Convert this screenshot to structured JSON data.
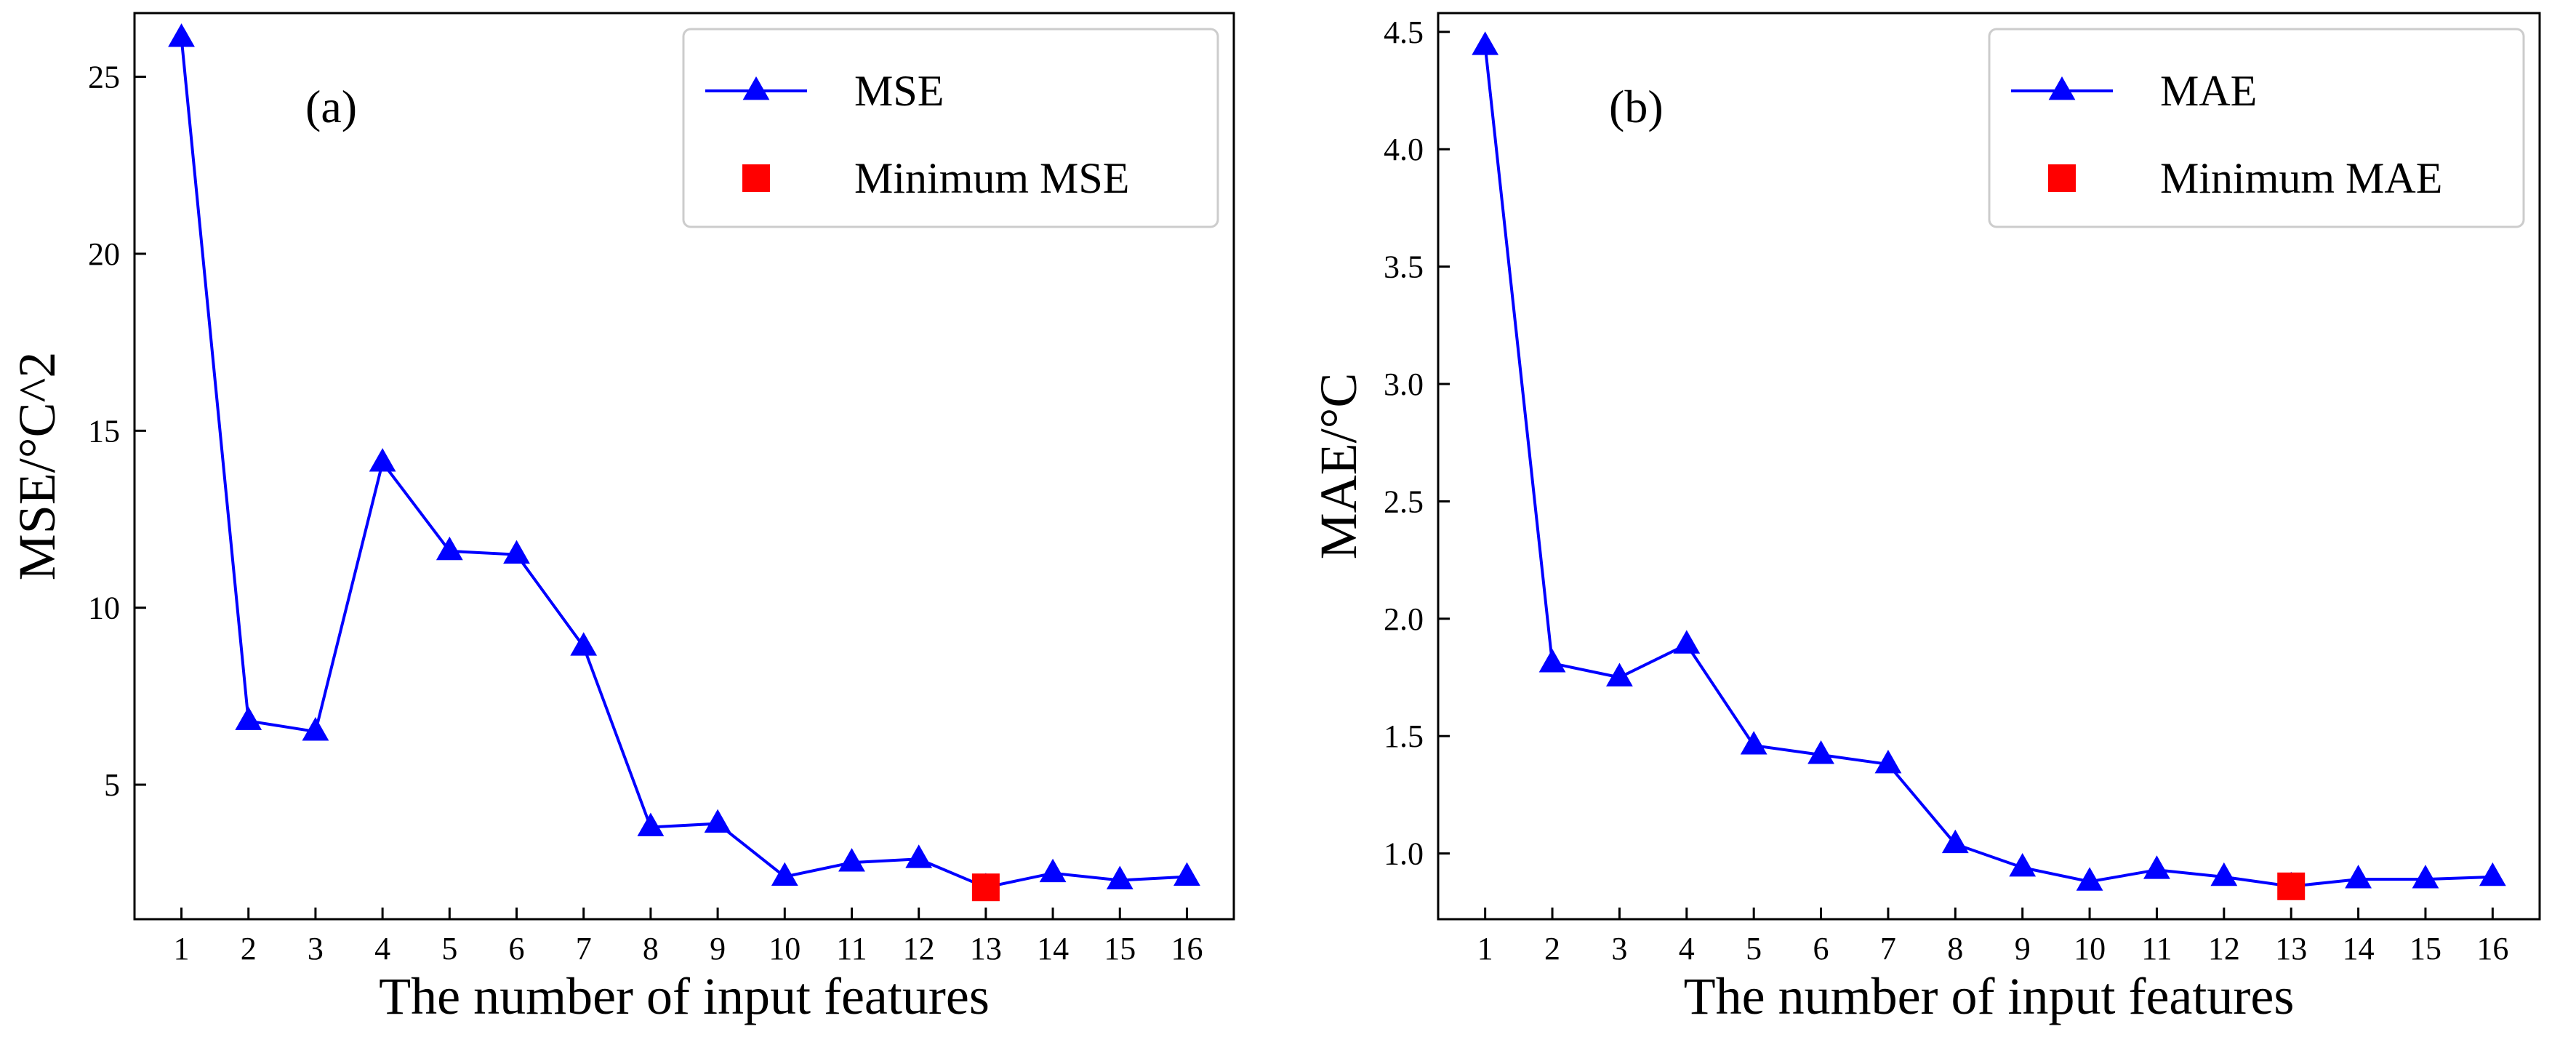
{
  "chart_data": [
    {
      "type": "line",
      "panel_label": "(a)",
      "xlabel": "The number of input features",
      "ylabel": "MSE/°C^2",
      "x": [
        1,
        2,
        3,
        4,
        5,
        6,
        7,
        8,
        9,
        10,
        11,
        12,
        13,
        14,
        15,
        16
      ],
      "xlim": [
        0.3,
        16.7
      ],
      "ylim": [
        1.2,
        26.8
      ],
      "yticks": [
        5,
        10,
        15,
        20,
        25
      ],
      "series": [
        {
          "name": "MSE",
          "color": "#0000ff",
          "marker": "triangle",
          "values": [
            26.1,
            6.8,
            6.5,
            14.1,
            11.6,
            11.5,
            8.9,
            3.8,
            3.9,
            2.4,
            2.8,
            2.9,
            2.1,
            2.5,
            2.3,
            2.4
          ]
        }
      ],
      "highlight": {
        "name": "Minimum MSE",
        "color": "#ff0000",
        "marker": "square",
        "x": 13,
        "y": 2.1
      },
      "legend": "top-right",
      "grid": false
    },
    {
      "type": "line",
      "panel_label": "(b)",
      "xlabel": "The number of input features",
      "ylabel": "MAE/°C",
      "x": [
        1,
        2,
        3,
        4,
        5,
        6,
        7,
        8,
        9,
        10,
        11,
        12,
        13,
        14,
        15,
        16
      ],
      "xlim": [
        0.3,
        16.7
      ],
      "ylim": [
        0.72,
        4.58
      ],
      "yticks": [
        1.0,
        1.5,
        2.0,
        2.5,
        3.0,
        3.5,
        4.0,
        4.5
      ],
      "series": [
        {
          "name": "MAE",
          "color": "#0000ff",
          "marker": "triangle",
          "values": [
            4.44,
            1.81,
            1.75,
            1.89,
            1.46,
            1.42,
            1.38,
            1.04,
            0.94,
            0.88,
            0.93,
            0.9,
            0.86,
            0.89,
            0.89,
            0.9
          ]
        }
      ],
      "highlight": {
        "name": "Minimum MAE",
        "color": "#ff0000",
        "marker": "square",
        "x": 13,
        "y": 0.86
      },
      "legend": "top-right",
      "grid": false
    }
  ]
}
